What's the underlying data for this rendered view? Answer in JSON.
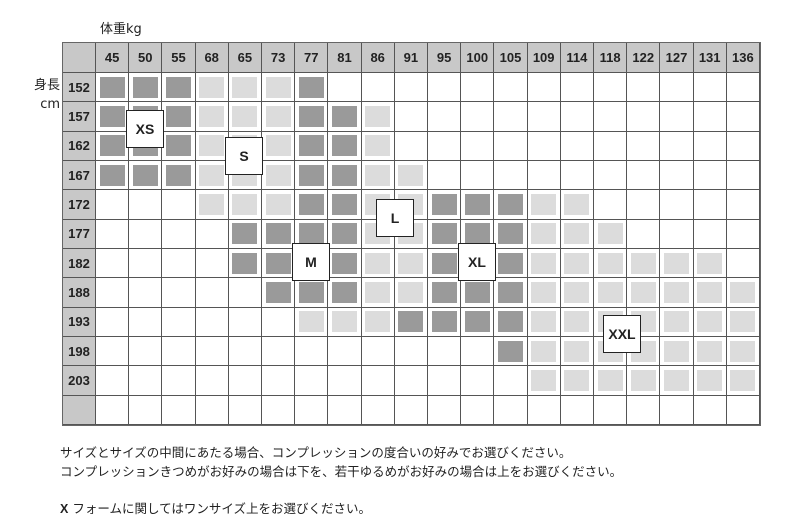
{
  "chart_data": {
    "type": "heatmap",
    "xlabel": "体重kg",
    "ylabel_line1": "身長",
    "ylabel_line2": "cm",
    "x_categories": [
      "45",
      "50",
      "55",
      "68",
      "65",
      "73",
      "77",
      "81",
      "86",
      "91",
      "95",
      "100",
      "105",
      "109",
      "114",
      "118",
      "122",
      "127",
      "131",
      "136"
    ],
    "y_categories": [
      "152",
      "157",
      "162",
      "167",
      "172",
      "177",
      "182",
      "188",
      "193",
      "198",
      "203",
      ""
    ],
    "legend_levels": {
      "0": "none",
      "1": "light",
      "2": "dark"
    },
    "colors": {
      "dark": "#9a9a9a",
      "light": "#dcdcdc",
      "header": "#c8c8c8",
      "grid": "#555555"
    },
    "matrix": [
      [
        2,
        2,
        2,
        1,
        1,
        1,
        2,
        0,
        0,
        0,
        0,
        0,
        0,
        0,
        0,
        0,
        0,
        0,
        0,
        0
      ],
      [
        2,
        2,
        2,
        1,
        1,
        1,
        2,
        2,
        1,
        0,
        0,
        0,
        0,
        0,
        0,
        0,
        0,
        0,
        0,
        0
      ],
      [
        2,
        2,
        2,
        1,
        1,
        1,
        2,
        2,
        1,
        0,
        0,
        0,
        0,
        0,
        0,
        0,
        0,
        0,
        0,
        0
      ],
      [
        2,
        2,
        2,
        1,
        1,
        1,
        2,
        2,
        1,
        1,
        0,
        0,
        0,
        0,
        0,
        0,
        0,
        0,
        0,
        0
      ],
      [
        0,
        0,
        0,
        1,
        1,
        1,
        2,
        2,
        1,
        1,
        2,
        2,
        2,
        1,
        1,
        0,
        0,
        0,
        0,
        0
      ],
      [
        0,
        0,
        0,
        0,
        2,
        2,
        2,
        2,
        1,
        1,
        2,
        2,
        2,
        1,
        1,
        1,
        0,
        0,
        0,
        0
      ],
      [
        0,
        0,
        0,
        0,
        2,
        2,
        2,
        2,
        1,
        1,
        2,
        2,
        2,
        1,
        1,
        1,
        1,
        1,
        1,
        0
      ],
      [
        0,
        0,
        0,
        0,
        0,
        2,
        2,
        2,
        1,
        1,
        2,
        2,
        2,
        1,
        1,
        1,
        1,
        1,
        1,
        1
      ],
      [
        0,
        0,
        0,
        0,
        0,
        0,
        1,
        1,
        1,
        2,
        2,
        2,
        2,
        1,
        1,
        1,
        1,
        1,
        1,
        1
      ],
      [
        0,
        0,
        0,
        0,
        0,
        0,
        0,
        0,
        0,
        0,
        0,
        0,
        2,
        1,
        1,
        1,
        1,
        1,
        1,
        1
      ],
      [
        0,
        0,
        0,
        0,
        0,
        0,
        0,
        0,
        0,
        0,
        0,
        0,
        0,
        1,
        1,
        1,
        1,
        1,
        1,
        1
      ],
      [
        0,
        0,
        0,
        0,
        0,
        0,
        0,
        0,
        0,
        0,
        0,
        0,
        0,
        0,
        0,
        0,
        0,
        0,
        0,
        0
      ]
    ],
    "size_labels": {
      "xs": "XS",
      "s": "S",
      "m": "M",
      "l": "L",
      "xl": "XL",
      "xxl": "XXL"
    }
  },
  "notes": {
    "line1": "サイズとサイズの中間にあたる場合、コンプレッションの度合いの好みでお選びください。",
    "line2": "コンプレッションきつめがお好みの場合は下を、若干ゆるめがお好みの場合は上をお選びください。",
    "line3_bold": "X",
    "line3": " フォームに関してはワンサイズ上をお選びください。"
  }
}
